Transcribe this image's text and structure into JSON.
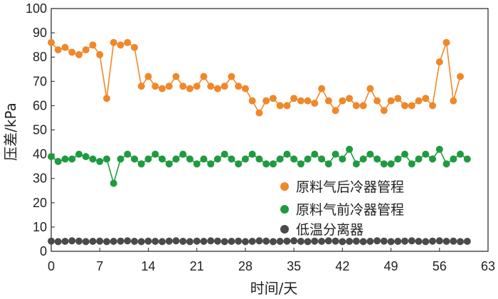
{
  "chart_data": {
    "type": "line",
    "xlabel": "时间/天",
    "ylabel": "压差/kPa",
    "xlim": [
      0,
      63
    ],
    "ylim": [
      0,
      100
    ],
    "xticks": [
      0,
      7,
      14,
      21,
      28,
      35,
      42,
      49,
      56,
      63
    ],
    "yticks": [
      0,
      10,
      20,
      30,
      40,
      50,
      60,
      70,
      80,
      90,
      100
    ],
    "grid": false,
    "legend_position": "right-center",
    "series": [
      {
        "name": "原料气后冷器管程",
        "color": "#f0882a",
        "line": true,
        "values": [
          [
            0,
            86
          ],
          [
            1,
            83
          ],
          [
            2,
            84
          ],
          [
            3,
            82
          ],
          [
            4,
            81
          ],
          [
            5,
            83
          ],
          [
            6,
            85
          ],
          [
            7,
            81
          ],
          [
            8,
            63
          ],
          [
            9,
            86
          ],
          [
            10,
            85
          ],
          [
            11,
            86
          ],
          [
            12,
            84
          ],
          [
            13,
            68
          ],
          [
            14,
            72
          ],
          [
            15,
            68
          ],
          [
            16,
            67
          ],
          [
            17,
            68
          ],
          [
            18,
            72
          ],
          [
            19,
            68
          ],
          [
            20,
            67
          ],
          [
            21,
            68
          ],
          [
            22,
            72
          ],
          [
            23,
            68
          ],
          [
            24,
            67
          ],
          [
            25,
            68
          ],
          [
            26,
            72
          ],
          [
            27,
            68
          ],
          [
            28,
            67
          ],
          [
            29,
            62
          ],
          [
            30,
            57
          ],
          [
            31,
            62
          ],
          [
            32,
            63
          ],
          [
            33,
            60
          ],
          [
            34,
            60
          ],
          [
            35,
            63
          ],
          [
            36,
            62
          ],
          [
            37,
            62
          ],
          [
            38,
            61
          ],
          [
            39,
            67
          ],
          [
            40,
            62
          ],
          [
            41,
            58
          ],
          [
            42,
            62
          ],
          [
            43,
            63
          ],
          [
            44,
            60
          ],
          [
            45,
            60
          ],
          [
            46,
            67
          ],
          [
            47,
            62
          ],
          [
            48,
            58
          ],
          [
            49,
            62
          ],
          [
            50,
            63
          ],
          [
            51,
            60
          ],
          [
            52,
            60
          ],
          [
            53,
            62
          ],
          [
            54,
            63
          ],
          [
            55,
            60
          ],
          [
            56,
            78
          ],
          [
            57,
            86
          ],
          [
            58,
            62
          ],
          [
            59,
            72
          ]
        ]
      },
      {
        "name": "原料气前冷器管程",
        "color": "#1f9b3f",
        "line": true,
        "values": [
          [
            0,
            39
          ],
          [
            1,
            37
          ],
          [
            2,
            38
          ],
          [
            3,
            38
          ],
          [
            4,
            40
          ],
          [
            5,
            39
          ],
          [
            6,
            38
          ],
          [
            7,
            37
          ],
          [
            8,
            38
          ],
          [
            9,
            28
          ],
          [
            10,
            38
          ],
          [
            11,
            40
          ],
          [
            12,
            38
          ],
          [
            13,
            36
          ],
          [
            14,
            38
          ],
          [
            15,
            40
          ],
          [
            16,
            38
          ],
          [
            17,
            36
          ],
          [
            18,
            38
          ],
          [
            19,
            40
          ],
          [
            20,
            38
          ],
          [
            21,
            36
          ],
          [
            22,
            38
          ],
          [
            23,
            36
          ],
          [
            24,
            38
          ],
          [
            25,
            40
          ],
          [
            26,
            38
          ],
          [
            27,
            36
          ],
          [
            28,
            38
          ],
          [
            29,
            40
          ],
          [
            30,
            38
          ],
          [
            31,
            36
          ],
          [
            32,
            36
          ],
          [
            33,
            38
          ],
          [
            34,
            40
          ],
          [
            35,
            38
          ],
          [
            36,
            36
          ],
          [
            37,
            38
          ],
          [
            38,
            40
          ],
          [
            39,
            38
          ],
          [
            40,
            36
          ],
          [
            41,
            40
          ],
          [
            42,
            38
          ],
          [
            43,
            42
          ],
          [
            44,
            36
          ],
          [
            45,
            38
          ],
          [
            46,
            40
          ],
          [
            47,
            38
          ],
          [
            48,
            36
          ],
          [
            49,
            36
          ],
          [
            50,
            38
          ],
          [
            51,
            40
          ],
          [
            52,
            36
          ],
          [
            53,
            38
          ],
          [
            54,
            40
          ],
          [
            55,
            38
          ],
          [
            56,
            42
          ],
          [
            57,
            36
          ],
          [
            58,
            38
          ],
          [
            59,
            40
          ],
          [
            60,
            38
          ]
        ]
      },
      {
        "name": "低温分离器",
        "color": "#4a4a4a",
        "line": false,
        "values": [
          [
            0,
            4.2
          ],
          [
            1,
            4.0
          ],
          [
            2,
            4.1
          ],
          [
            3,
            4.3
          ],
          [
            4,
            4.2
          ],
          [
            5,
            4.0
          ],
          [
            6,
            4.1
          ],
          [
            7,
            4.2
          ],
          [
            8,
            4.0
          ],
          [
            9,
            4.1
          ],
          [
            10,
            4.2
          ],
          [
            11,
            4.3
          ],
          [
            12,
            4.1
          ],
          [
            13,
            4.0
          ],
          [
            14,
            4.2
          ],
          [
            15,
            4.1
          ],
          [
            16,
            4.0
          ],
          [
            17,
            4.2
          ],
          [
            18,
            4.3
          ],
          [
            19,
            4.1
          ],
          [
            20,
            4.0
          ],
          [
            21,
            4.2
          ],
          [
            22,
            4.1
          ],
          [
            23,
            4.3
          ],
          [
            24,
            4.2
          ],
          [
            25,
            4.0
          ],
          [
            26,
            4.1
          ],
          [
            27,
            4.2
          ],
          [
            28,
            4.0
          ],
          [
            29,
            4.1
          ],
          [
            30,
            4.3
          ],
          [
            31,
            4.2
          ],
          [
            32,
            4.0
          ],
          [
            33,
            4.1
          ],
          [
            34,
            4.2
          ],
          [
            35,
            4.3
          ],
          [
            36,
            4.1
          ],
          [
            37,
            4.0
          ],
          [
            38,
            4.2
          ],
          [
            39,
            4.1
          ],
          [
            40,
            4.3
          ],
          [
            41,
            4.2
          ],
          [
            42,
            4.0
          ],
          [
            43,
            4.1
          ],
          [
            44,
            4.2
          ],
          [
            45,
            4.0
          ],
          [
            46,
            4.1
          ],
          [
            47,
            4.3
          ],
          [
            48,
            4.2
          ],
          [
            49,
            4.0
          ],
          [
            50,
            4.1
          ],
          [
            51,
            4.2
          ],
          [
            52,
            4.3
          ],
          [
            53,
            4.1
          ],
          [
            54,
            4.0
          ],
          [
            55,
            4.2
          ],
          [
            56,
            4.3
          ],
          [
            57,
            4.1
          ],
          [
            58,
            4.2
          ],
          [
            59,
            4.0
          ],
          [
            60,
            4.1
          ]
        ]
      }
    ]
  }
}
